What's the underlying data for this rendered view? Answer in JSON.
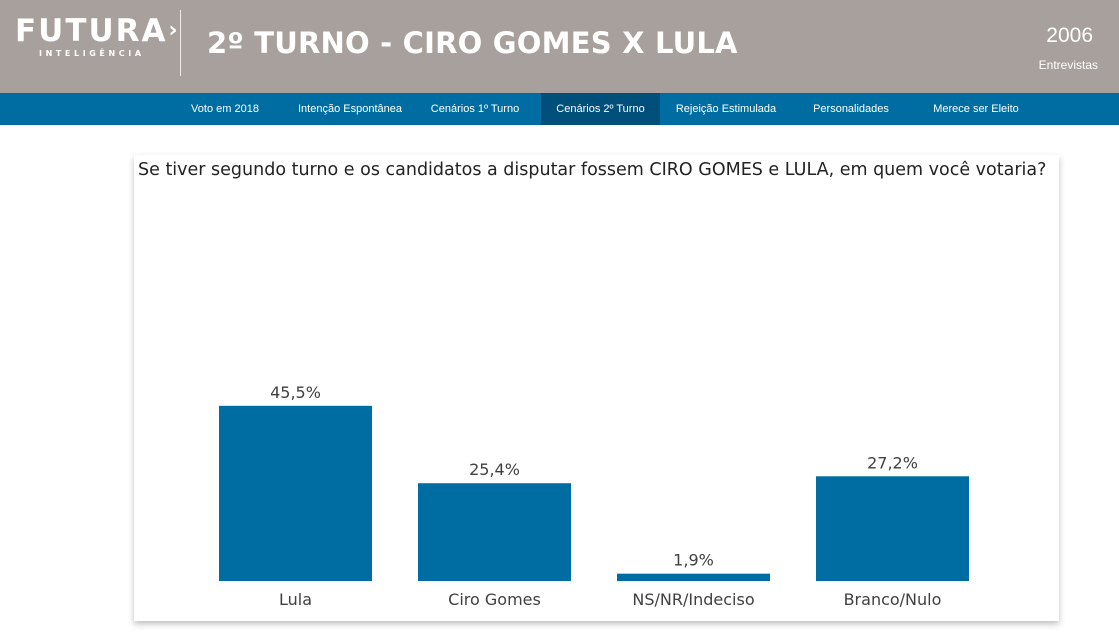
{
  "header": {
    "logo_main": "FUTURA",
    "logo_arrow": "›",
    "logo_sub": "INTELIGÊNCIA",
    "title": "2º TURNO - CIRO GOMES X LULA",
    "count": "2006",
    "count_label": "Entrevistas",
    "background_color": "#a8a09c"
  },
  "nav": {
    "items": [
      {
        "label": "Voto em 2018"
      },
      {
        "label": "Intenção Espontânea"
      },
      {
        "label": "Cenários 1º Turno"
      },
      {
        "label": "Cenários 2º Turno",
        "active": true
      },
      {
        "label": "Rejeição Estimulada"
      },
      {
        "label": "Personalidades"
      },
      {
        "label": "Merece ser Eleito"
      }
    ],
    "background_color": "#006da2",
    "active_color": "#004f7a"
  },
  "question": "Se tiver segundo turno e os candidatos a disputar fossem CIRO GOMES e LULA, em quem você votaria?",
  "chart_data": {
    "type": "bar",
    "categories": [
      "Lula",
      "Ciro Gomes",
      "NS/NR/Indeciso",
      "Branco/Nulo"
    ],
    "values": [
      45.5,
      25.4,
      1.9,
      27.2
    ],
    "value_labels": [
      "45,5%",
      "25,4%",
      "1,9%",
      "27,2%"
    ],
    "title": "",
    "xlabel": "",
    "ylabel": "",
    "ylim": [
      0,
      50
    ],
    "grid": false,
    "bar_color": "#006da2"
  }
}
